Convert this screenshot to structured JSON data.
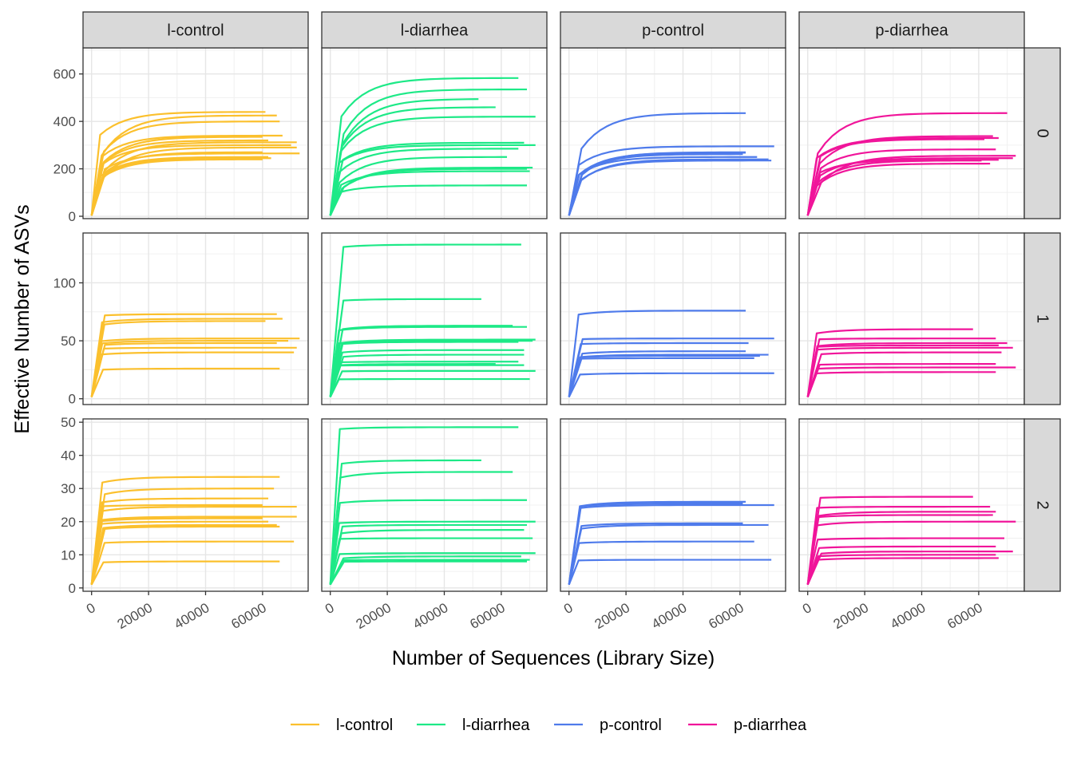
{
  "chart_data": {
    "type": "line",
    "xlabel": "Number of Sequences (Library Size)",
    "ylabel": "Effective Number of ASVs",
    "col_facets": [
      "l-control",
      "l-diarrhea",
      "p-control",
      "p-diarrhea"
    ],
    "row_facets": [
      "0",
      "1",
      "2"
    ],
    "x_range": [
      -3000,
      76000
    ],
    "x_ticks": [
      0,
      20000,
      40000,
      60000
    ],
    "x_tick_labels": [
      "0",
      "20000",
      "40000",
      "60000"
    ],
    "rows": [
      {
        "facet": "0",
        "ylim": [
          -10,
          710
        ],
        "y_ticks": [
          0,
          200,
          400,
          600
        ],
        "y_tick_labels": [
          "0",
          "200",
          "400",
          "600"
        ]
      },
      {
        "facet": "1",
        "ylim": [
          -5,
          143
        ],
        "y_ticks": [
          0,
          50,
          100
        ],
        "y_tick_labels": [
          "0",
          "50",
          "100"
        ]
      },
      {
        "facet": "2",
        "ylim": [
          -1,
          51
        ],
        "y_ticks": [
          0,
          10,
          20,
          30,
          40,
          50
        ],
        "y_tick_labels": [
          "0",
          "10",
          "20",
          "30",
          "40",
          "50"
        ]
      }
    ],
    "colors": {
      "l-control": "#FBC02D",
      "l-diarrhea": "#1DE987",
      "p-control": "#4F7BEB",
      "p-diarrhea": "#F0159A"
    },
    "legend": {
      "position": "bottom",
      "entries": [
        "l-control",
        "l-diarrhea",
        "p-control",
        "p-diarrhea"
      ]
    },
    "grid": true,
    "curves": {
      "l-control": [
        [
          [
            440,
            61000
          ],
          [
            425,
            65000
          ],
          [
            400,
            66000
          ],
          [
            340,
            67000
          ],
          [
            335,
            60000
          ],
          [
            320,
            62000
          ],
          [
            312,
            72000
          ],
          [
            300,
            70000
          ],
          [
            290,
            72000
          ],
          [
            270,
            60000
          ],
          [
            265,
            73000
          ],
          [
            250,
            62000
          ],
          [
            245,
            63000
          ],
          [
            240,
            60000
          ]
        ],
        [
          [
            73,
            65000
          ],
          [
            69,
            67000
          ],
          [
            67,
            61000
          ],
          [
            52,
            73000
          ],
          [
            50,
            69000
          ],
          [
            48,
            65000
          ],
          [
            44,
            72000
          ],
          [
            40,
            71000
          ],
          [
            26,
            66000
          ]
        ],
        [
          [
            33.5,
            66000
          ],
          [
            30,
            64000
          ],
          [
            27,
            62000
          ],
          [
            25,
            60000
          ],
          [
            24.5,
            72000
          ],
          [
            21.5,
            72000
          ],
          [
            21,
            60000
          ],
          [
            20,
            62000
          ],
          [
            19,
            65000
          ],
          [
            18.5,
            66000
          ],
          [
            14,
            71000
          ],
          [
            8,
            66000
          ]
        ]
      ],
      "l-diarrhea": [
        [
          [
            583,
            66000
          ],
          [
            535,
            69000
          ],
          [
            495,
            52000
          ],
          [
            460,
            58000
          ],
          [
            420,
            72000
          ],
          [
            310,
            68000
          ],
          [
            300,
            72000
          ],
          [
            285,
            66000
          ],
          [
            250,
            62000
          ],
          [
            205,
            71000
          ],
          [
            200,
            69000
          ],
          [
            190,
            70000
          ],
          [
            130,
            69000
          ]
        ],
        [
          [
            133,
            67000
          ],
          [
            86,
            53000
          ],
          [
            63,
            64000
          ],
          [
            62,
            69000
          ],
          [
            51,
            72000
          ],
          [
            50,
            71000
          ],
          [
            49,
            66000
          ],
          [
            42,
            68000
          ],
          [
            38,
            68000
          ],
          [
            32,
            66000
          ],
          [
            30,
            58000
          ],
          [
            29,
            68000
          ],
          [
            24,
            72000
          ],
          [
            17,
            70000
          ]
        ],
        [
          [
            48.5,
            66000
          ],
          [
            38.5,
            53000
          ],
          [
            35,
            64000
          ],
          [
            26.5,
            69000
          ],
          [
            20,
            72000
          ],
          [
            19,
            69000
          ],
          [
            17.5,
            68000
          ],
          [
            15,
            71000
          ],
          [
            10.5,
            72000
          ],
          [
            9.5,
            67000
          ],
          [
            8.5,
            70000
          ],
          [
            8,
            69000
          ]
        ]
      ],
      "p-control": [
        [
          [
            435,
            62000
          ],
          [
            295,
            72000
          ],
          [
            270,
            62000
          ],
          [
            268,
            62000
          ],
          [
            262,
            61000
          ],
          [
            250,
            66000
          ],
          [
            240,
            70000
          ],
          [
            235,
            71000
          ]
        ],
        [
          [
            76,
            62000
          ],
          [
            52,
            72000
          ],
          [
            48,
            63000
          ],
          [
            41,
            62000
          ],
          [
            38,
            70000
          ],
          [
            37,
            67000
          ],
          [
            35,
            65000
          ],
          [
            22,
            72000
          ]
        ],
        [
          [
            26,
            62000
          ],
          [
            25.5,
            61000
          ],
          [
            25,
            72000
          ],
          [
            19.5,
            61000
          ],
          [
            19,
            70000
          ],
          [
            14,
            65000
          ],
          [
            8.5,
            71000
          ]
        ]
      ],
      "p-diarrhea": [
        [
          [
            435,
            70000
          ],
          [
            338,
            65000
          ],
          [
            330,
            67000
          ],
          [
            325,
            62000
          ],
          [
            282,
            66000
          ],
          [
            255,
            73000
          ],
          [
            245,
            72000
          ],
          [
            238,
            67000
          ],
          [
            235,
            61000
          ],
          [
            222,
            64000
          ]
        ],
        [
          [
            60,
            58000
          ],
          [
            52,
            66000
          ],
          [
            48,
            70000
          ],
          [
            46,
            67000
          ],
          [
            44,
            72000
          ],
          [
            40,
            68000
          ],
          [
            30,
            66000
          ],
          [
            27,
            73000
          ],
          [
            23,
            66000
          ]
        ],
        [
          [
            27.5,
            58000
          ],
          [
            24.5,
            64000
          ],
          [
            23,
            66000
          ],
          [
            22,
            65000
          ],
          [
            20,
            73000
          ],
          [
            15,
            69000
          ],
          [
            12.5,
            66000
          ],
          [
            11,
            72000
          ],
          [
            10,
            66000
          ],
          [
            9,
            67000
          ]
        ]
      ]
    }
  }
}
